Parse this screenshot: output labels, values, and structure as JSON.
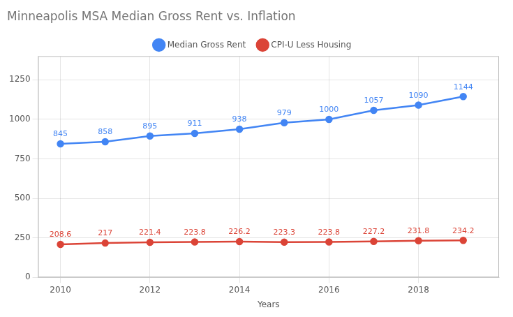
{
  "chart_data": {
    "type": "line",
    "title": "Minneapolis MSA Median Gross Rent vs. Inflation",
    "xlabel": "Years",
    "x": [
      2010,
      2011,
      2012,
      2013,
      2014,
      2015,
      2016,
      2017,
      2018,
      2019
    ],
    "series": [
      {
        "name": "Median Gross Rent",
        "color": "#4285F4",
        "values": [
          845,
          858,
          895,
          911,
          938,
          979,
          1000,
          1057,
          1090,
          1144
        ]
      },
      {
        "name": "CPI-U Less Housing",
        "color": "#DB4437",
        "values": [
          208.6,
          217,
          221.4,
          223.8,
          226.2,
          223.3,
          223.8,
          227.2,
          231.8,
          234.2
        ]
      }
    ],
    "xlim": [
      2009.5,
      2019.8
    ],
    "xticks": [
      2010,
      2012,
      2014,
      2016,
      2018
    ],
    "ylim": [
      0,
      1400
    ],
    "yticks": [
      0,
      250,
      500,
      750,
      1000,
      1250
    ],
    "grid": true,
    "legend": "top",
    "data_labels": true,
    "marker": "circle"
  }
}
